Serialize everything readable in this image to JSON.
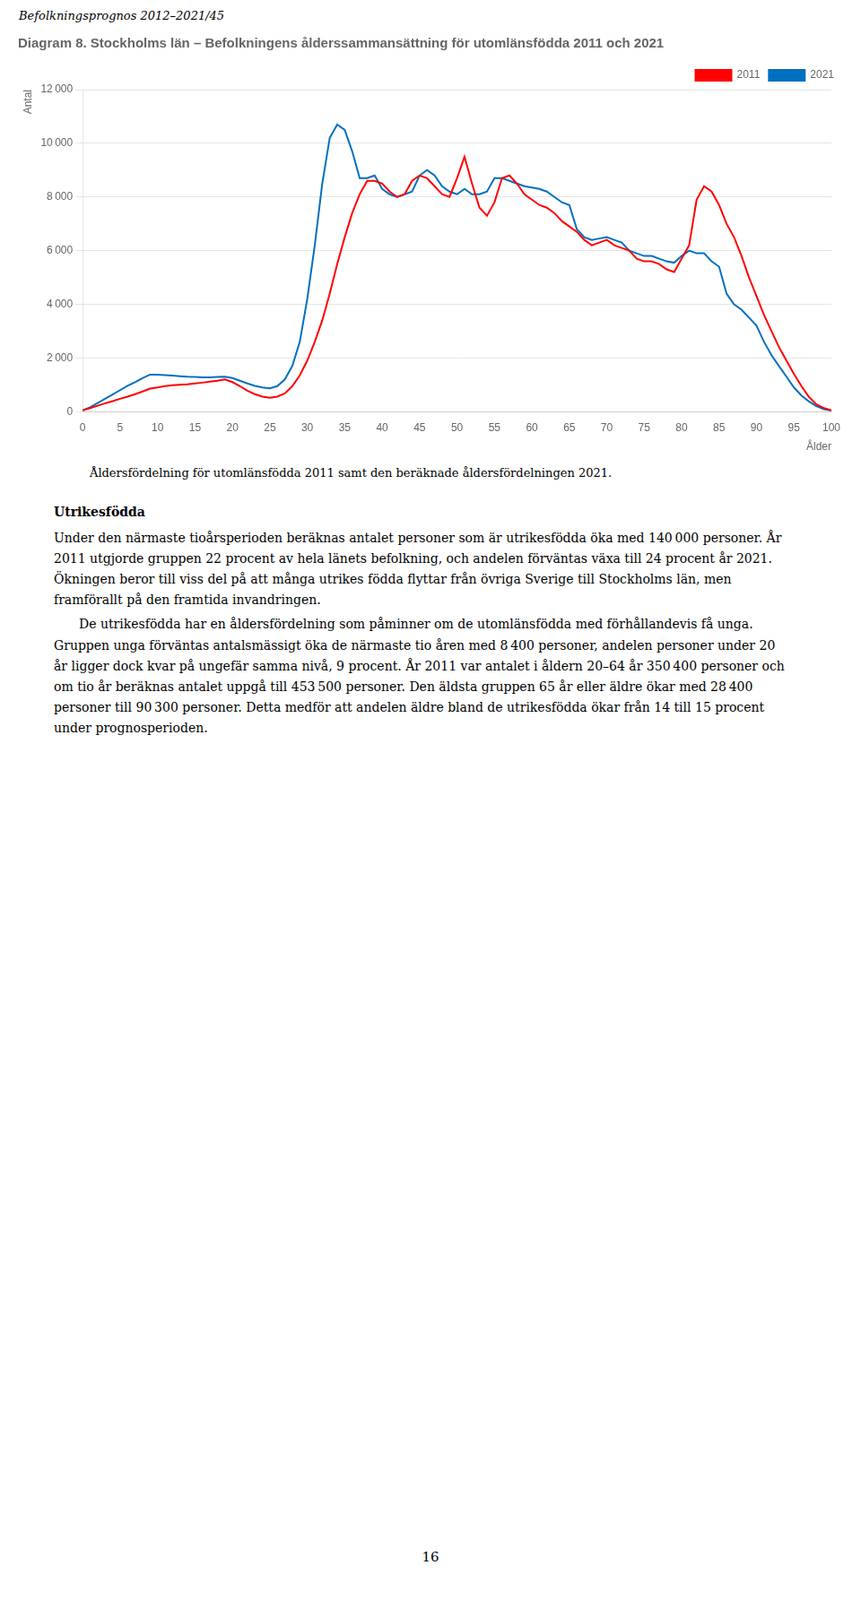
{
  "chart_data": {
    "type": "line",
    "title": "Diagram 8. Stockholms län – Befolkningens ålderssammansättning för utomlänsfödda 2011 och 2021",
    "xlabel": "Ålder",
    "ylabel": "Antal",
    "annotations": [
      "Befolkningsprognos 2012–2021/45",
      "Åldersfördelning för utomlänsfödda 2011 samt den beräknade åldersfördelningen 2021.",
      "Utrikesfödda",
      "Under den närmaste tioårsperioden beräknas antalet personer som är utrikesfödda öka med 140 000 personer. År 2011 utgjorde gruppen 22 procent av hela länets befolkning, och andelen förväntas växa till 24 procent år 2021. Ökningen beror till viss del på att många utrikes födda flyttar från övriga Sverige till Stockholms län, men framförallt på den framtida invandringen.",
      "De utrikesfödda har en åldersfördelning som påminner om de utomlänsfödda med förhållandevis få unga. Gruppen unga förväntas antalsmässigt öka de närmaste tio åren med 8 400 personer, andelen personer under 20 år ligger dock kvar på ungefär samma nivå, 9 procent. År 2011 var antalet i åldern 20–64 år 350 400 personer och om tio år beräknas antalet uppgå till 453 500 personer. Den äldsta gruppen 65 år eller äldre ökar med 28 400 personer till 90 300 personer. Detta medför att andelen äldre bland de utrikesfödda ökar från 14 till 15 procent under prognosperioden.",
      "16"
    ],
    "x": [
      0,
      1,
      2,
      3,
      4,
      5,
      6,
      7,
      8,
      9,
      10,
      11,
      12,
      13,
      14,
      15,
      16,
      17,
      18,
      19,
      20,
      21,
      22,
      23,
      24,
      25,
      26,
      27,
      28,
      29,
      30,
      31,
      32,
      33,
      34,
      35,
      36,
      37,
      38,
      39,
      40,
      41,
      42,
      43,
      44,
      45,
      46,
      47,
      48,
      49,
      50,
      51,
      52,
      53,
      54,
      55,
      56,
      57,
      58,
      59,
      60,
      61,
      62,
      63,
      64,
      65,
      66,
      67,
      68,
      69,
      70,
      71,
      72,
      73,
      74,
      75,
      76,
      77,
      78,
      79,
      80,
      81,
      82,
      83,
      84,
      85,
      86,
      87,
      88,
      89,
      90,
      91,
      92,
      93,
      94,
      95,
      96,
      97,
      98,
      99,
      100
    ],
    "series": [
      {
        "name": "2011",
        "color": "#FF0000",
        "values": [
          50,
          130,
          220,
          310,
          390,
          480,
          560,
          650,
          750,
          860,
          900,
          950,
          980,
          1000,
          1020,
          1050,
          1080,
          1120,
          1150,
          1200,
          1100,
          950,
          780,
          650,
          560,
          520,
          560,
          680,
          950,
          1350,
          1900,
          2600,
          3400,
          4400,
          5500,
          6500,
          7400,
          8100,
          8600,
          8600,
          8500,
          8200,
          8000,
          8100,
          8600,
          8800,
          8700,
          8400,
          8100,
          8000,
          8700,
          9500,
          8500,
          7600,
          7300,
          7800,
          8700,
          8800,
          8500,
          8100,
          7900,
          7700,
          7600,
          7400,
          7100,
          6900,
          6700,
          6400,
          6200,
          6300,
          6400,
          6200,
          6100,
          6000,
          5700,
          5600,
          5600,
          5500,
          5300,
          5200,
          5700,
          6200,
          7900,
          8400,
          8200,
          7700,
          7000,
          6500,
          5800,
          5000,
          4300,
          3600,
          3000,
          2400,
          1900,
          1400,
          950,
          550,
          270,
          130,
          50
        ]
      },
      {
        "name": "2021",
        "color": "#0070C0",
        "values": [
          50,
          160,
          320,
          480,
          640,
          800,
          960,
          1100,
          1250,
          1380,
          1380,
          1360,
          1340,
          1320,
          1300,
          1290,
          1280,
          1280,
          1290,
          1300,
          1250,
          1150,
          1050,
          960,
          900,
          870,
          950,
          1200,
          1700,
          2600,
          4200,
          6200,
          8500,
          10200,
          10700,
          10500,
          9700,
          8700,
          8700,
          8800,
          8300,
          8100,
          8000,
          8100,
          8200,
          8800,
          9000,
          8800,
          8400,
          8200,
          8100,
          8300,
          8100,
          8100,
          8200,
          8700,
          8700,
          8600,
          8500,
          8400,
          8350,
          8300,
          8200,
          8000,
          7800,
          7700,
          6800,
          6500,
          6400,
          6450,
          6500,
          6400,
          6300,
          6000,
          5900,
          5800,
          5800,
          5700,
          5600,
          5550,
          5800,
          6000,
          5900,
          5900,
          5600,
          5400,
          4400,
          4000,
          3800,
          3500,
          3200,
          2600,
          2100,
          1700,
          1300,
          900,
          600,
          380,
          200,
          90,
          40
        ]
      }
    ],
    "xlim": [
      0,
      100
    ],
    "xticks": [
      0,
      5,
      10,
      15,
      20,
      25,
      30,
      35,
      40,
      45,
      50,
      55,
      60,
      65,
      70,
      75,
      80,
      85,
      90,
      95,
      100
    ],
    "ylim": [
      0,
      12000
    ],
    "yticks": [
      0,
      {
        "value": 2000,
        "label": "2 000"
      },
      {
        "value": 4000,
        "label": "4 000"
      },
      {
        "value": 6000,
        "label": "6 000"
      },
      {
        "value": 8000,
        "label": "8 000"
      },
      {
        "value": 10000,
        "label": "10 000"
      },
      {
        "value": 12000,
        "label": "12 000"
      }
    ],
    "grid": "y",
    "legend": "upper right",
    "marker": "none"
  }
}
